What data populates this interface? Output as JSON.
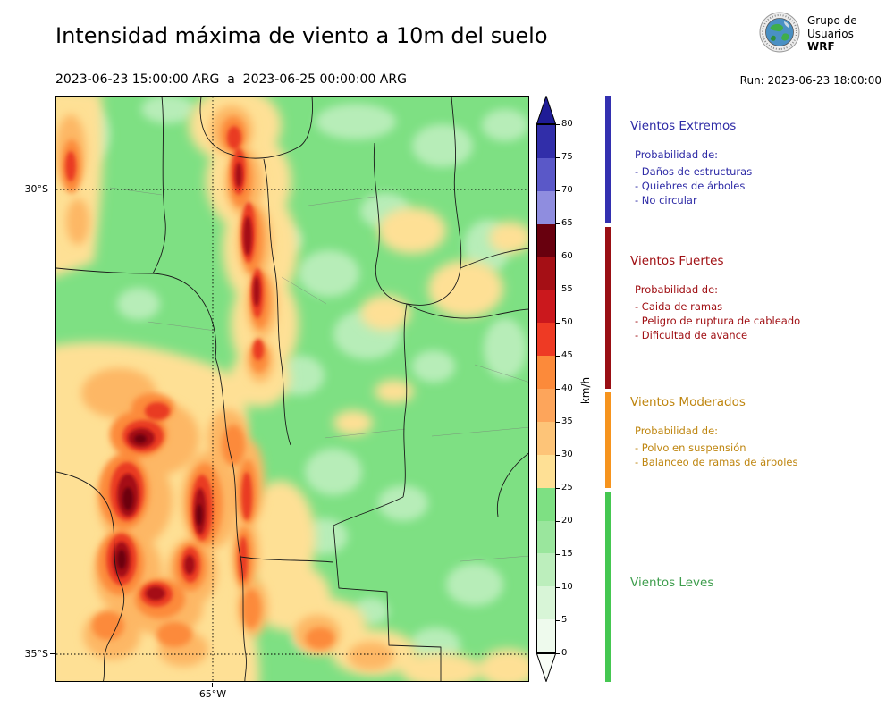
{
  "header": {
    "title": "Intensidad máxima de viento a 10m del suelo",
    "period": "2023-06-23 15:00:00 ARG  a  2023-06-25 00:00:00 ARG",
    "run": "Run: 2023-06-23 18:00:00",
    "logo": {
      "line1": "Grupo de",
      "line2": "Usuarios",
      "line3": "WRF"
    }
  },
  "map": {
    "lat_labels": [
      "30°S",
      "35°S"
    ],
    "lon_label": "65°W"
  },
  "colorbar": {
    "unit": "km/h",
    "tick_labels": [
      "80",
      "75",
      "70",
      "65",
      "60",
      "55",
      "50",
      "45",
      "40",
      "35",
      "30",
      "25",
      "20",
      "15",
      "10",
      "5",
      "0"
    ],
    "over_color": "#1f1c96",
    "under_color": "#f8fdf6",
    "segments_top_to_bottom": [
      {
        "range": "75-80",
        "color": "#312ea9"
      },
      {
        "range": "70-75",
        "color": "#5a58c8"
      },
      {
        "range": "65-70",
        "color": "#8f8ddf"
      },
      {
        "range": "60-65",
        "color": "#68000e"
      },
      {
        "range": "55-60",
        "color": "#a50f15"
      },
      {
        "range": "50-55",
        "color": "#cb181d"
      },
      {
        "range": "45-50",
        "color": "#ee3a24"
      },
      {
        "range": "40-45",
        "color": "#fc8a3a"
      },
      {
        "range": "35-40",
        "color": "#fda55b"
      },
      {
        "range": "30-35",
        "color": "#fdc478"
      },
      {
        "range": "25-30",
        "color": "#fee095"
      },
      {
        "range": "20-25",
        "color": "#7ee083"
      },
      {
        "range": "15-20",
        "color": "#9ae69d"
      },
      {
        "range": "10-15",
        "color": "#bceebc"
      },
      {
        "range": "5-10",
        "color": "#d8f5d7"
      },
      {
        "range": "0-5",
        "color": "#eefaed"
      }
    ]
  },
  "legend": {
    "sections": [
      {
        "title": "Vientos Extremos",
        "color": "#2e2ba6",
        "bar_color": "#3330b0",
        "intro": "Probabilidad de:",
        "items": [
          "- Daños de estructuras",
          "- Quiebres de árboles",
          "- No circular"
        ]
      },
      {
        "title": "Vientos Fuertes",
        "color": "#a01014",
        "bar_color": "#990f14",
        "intro": "Probabilidad de:",
        "items": [
          "- Caida de ramas",
          "- Peligro de ruptura de cableado",
          "- Dificultad de avance"
        ]
      },
      {
        "title": "Vientos Moderados",
        "color": "#bf8610",
        "bar_color": "#f6941e",
        "intro": "Probabilidad de:",
        "items": [
          "- Polvo en suspensión",
          "- Balanceo de ramas de árboles"
        ]
      },
      {
        "title": "Vientos Leves",
        "color": "#3f9e4e",
        "bar_color": "#45c751",
        "intro": "",
        "items": []
      }
    ]
  }
}
